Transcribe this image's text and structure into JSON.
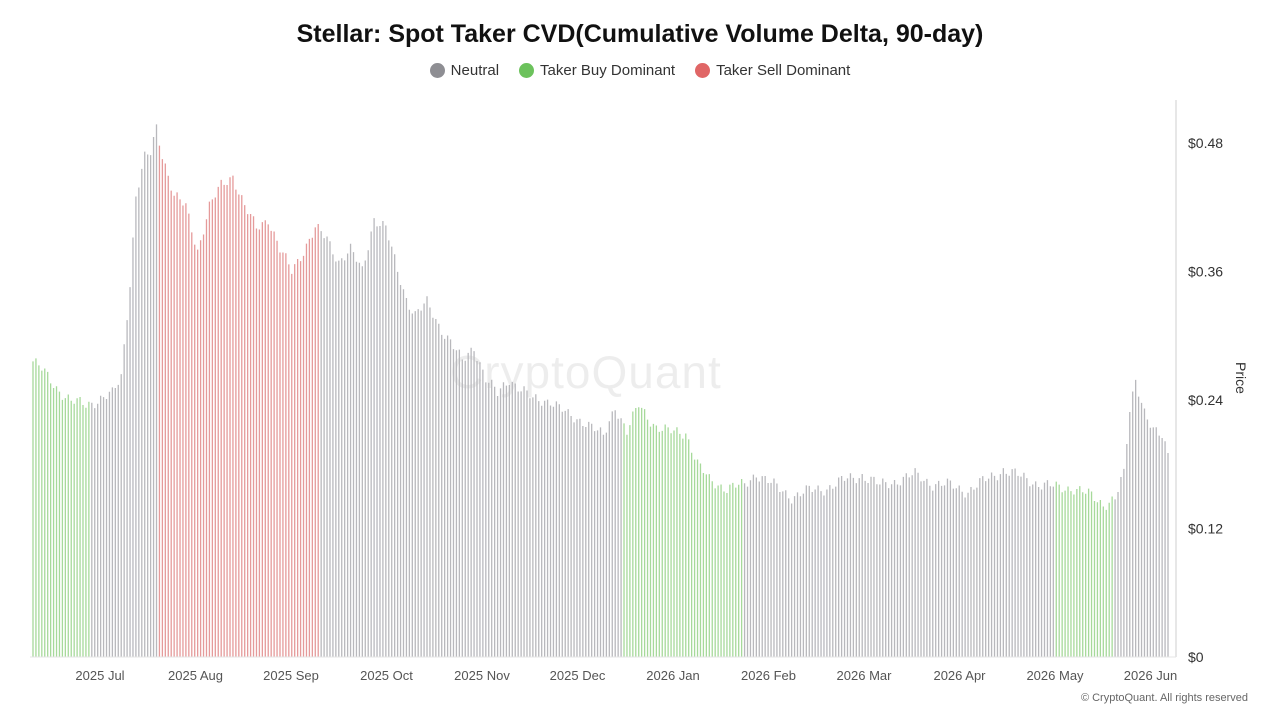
{
  "chart_data": {
    "type": "bar",
    "title": "Stellar: Spot Taker CVD(Cumulative Volume Delta, 90-day)",
    "ylabel": "Price",
    "ylim": [
      0,
      0.52
    ],
    "yticks": [
      "$0",
      "$0.12",
      "$0.24",
      "$0.36",
      "$0.48"
    ],
    "ytick_values": [
      0,
      0.12,
      0.24,
      0.36,
      0.48
    ],
    "xtick_labels": [
      "2025 Jul",
      "2025 Aug",
      "2025 Sep",
      "2025 Oct",
      "2025 Nov",
      "2025 Dec",
      "2026 Jan",
      "2026 Feb",
      "2026 Mar",
      "2026 Apr",
      "2026 May",
      "2026 Jun"
    ],
    "grid": false,
    "legend_position": "top-center",
    "legend": [
      {
        "name": "Neutral",
        "color": "#8e8e93"
      },
      {
        "name": "Taker Buy Dominant",
        "color": "#6cc25c"
      },
      {
        "name": "Taker Sell Dominant",
        "color": "#e06666"
      }
    ],
    "series": [
      {
        "name": "Neutral",
        "color": "#b8b8bc",
        "segments": [
          [
            20,
            42
          ],
          [
            98,
            200
          ],
          [
            242,
            347
          ]
        ]
      },
      {
        "name": "Taker Buy Dominant",
        "color": "#a6d99a",
        "segments": [
          [
            0,
            19
          ],
          [
            155,
            241
          ],
          [
            348,
            367
          ]
        ]
      },
      {
        "name": "Taker Sell Dominant",
        "color": "#e59a9a",
        "segments": [
          [
            43,
            97
          ]
        ]
      }
    ],
    "keyframes": [
      [
        0,
        0.276
      ],
      [
        3,
        0.268
      ],
      [
        8,
        0.252
      ],
      [
        13,
        0.238
      ],
      [
        18,
        0.236
      ],
      [
        22,
        0.24
      ],
      [
        27,
        0.245
      ],
      [
        30,
        0.262
      ],
      [
        33,
        0.35
      ],
      [
        35,
        0.43
      ],
      [
        38,
        0.465
      ],
      [
        40,
        0.47
      ],
      [
        42,
        0.495
      ],
      [
        44,
        0.47
      ],
      [
        48,
        0.43
      ],
      [
        52,
        0.42
      ],
      [
        56,
        0.38
      ],
      [
        60,
        0.42
      ],
      [
        64,
        0.44
      ],
      [
        68,
        0.45
      ],
      [
        72,
        0.42
      ],
      [
        76,
        0.4
      ],
      [
        80,
        0.41
      ],
      [
        84,
        0.38
      ],
      [
        88,
        0.36
      ],
      [
        92,
        0.38
      ],
      [
        96,
        0.4
      ],
      [
        100,
        0.39
      ],
      [
        104,
        0.37
      ],
      [
        108,
        0.38
      ],
      [
        112,
        0.36
      ],
      [
        116,
        0.41
      ],
      [
        120,
        0.4
      ],
      [
        124,
        0.36
      ],
      [
        127,
        0.335
      ],
      [
        130,
        0.32
      ],
      [
        134,
        0.33
      ],
      [
        138,
        0.31
      ],
      [
        142,
        0.295
      ],
      [
        146,
        0.275
      ],
      [
        150,
        0.29
      ],
      [
        154,
        0.26
      ],
      [
        158,
        0.245
      ],
      [
        162,
        0.26
      ],
      [
        166,
        0.25
      ],
      [
        170,
        0.24
      ],
      [
        176,
        0.24
      ],
      [
        182,
        0.225
      ],
      [
        188,
        0.22
      ],
      [
        194,
        0.205
      ],
      [
        198,
        0.235
      ],
      [
        202,
        0.21
      ],
      [
        206,
        0.235
      ],
      [
        212,
        0.215
      ],
      [
        216,
        0.21
      ],
      [
        222,
        0.21
      ],
      [
        226,
        0.18
      ],
      [
        230,
        0.165
      ],
      [
        236,
        0.158
      ],
      [
        242,
        0.16
      ],
      [
        246,
        0.172
      ],
      [
        252,
        0.16
      ],
      [
        258,
        0.15
      ],
      [
        264,
        0.155
      ],
      [
        270,
        0.158
      ],
      [
        276,
        0.165
      ],
      [
        282,
        0.17
      ],
      [
        288,
        0.16
      ],
      [
        294,
        0.165
      ],
      [
        300,
        0.17
      ],
      [
        306,
        0.162
      ],
      [
        312,
        0.16
      ],
      [
        318,
        0.155
      ],
      [
        324,
        0.165
      ],
      [
        330,
        0.175
      ],
      [
        336,
        0.168
      ],
      [
        342,
        0.162
      ],
      [
        348,
        0.158
      ],
      [
        354,
        0.158
      ],
      [
        360,
        0.15
      ],
      [
        364,
        0.143
      ],
      [
        368,
        0.148
      ],
      [
        371,
        0.17
      ],
      [
        373,
        0.23
      ],
      [
        375,
        0.26
      ],
      [
        378,
        0.23
      ],
      [
        381,
        0.21
      ],
      [
        384,
        0.205
      ],
      [
        386,
        0.19
      ]
    ],
    "n_bars": 387
  },
  "watermark": "CryptoQuant",
  "footer": "© CryptoQuant. All rights reserved"
}
